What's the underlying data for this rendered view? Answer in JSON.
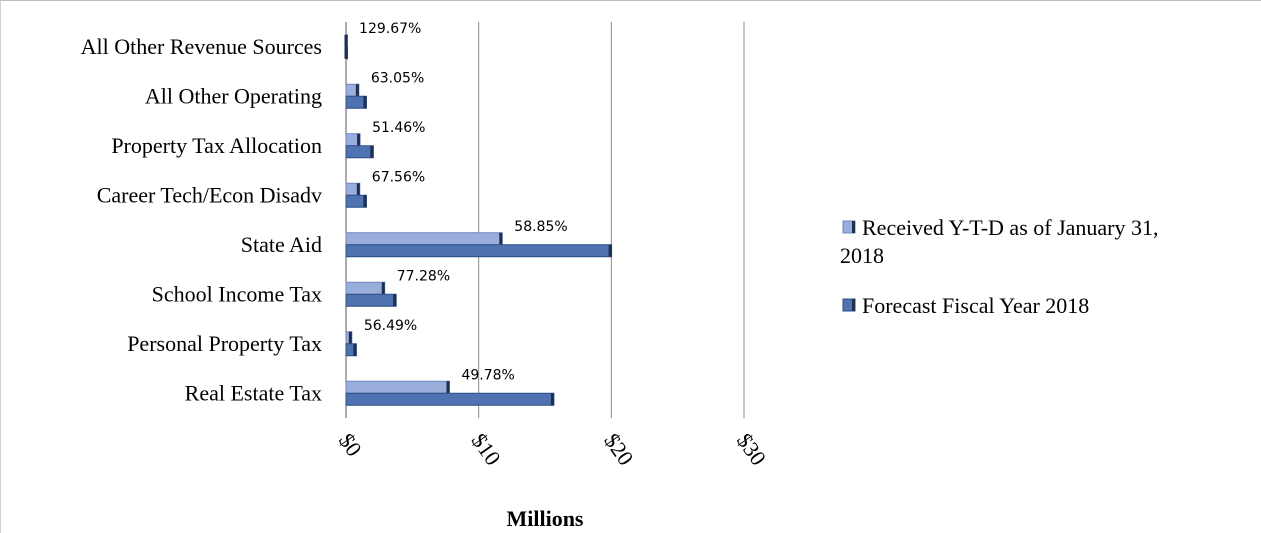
{
  "chart_data": {
    "type": "bar",
    "orientation": "horizontal",
    "categories": [
      "Real Estate Tax",
      "Personal Property Tax",
      "School Income Tax",
      "State Aid",
      "Career Tech/Econ Disadv",
      "Property Tax Allocation",
      "All Other Operating",
      "All Other Revenue Sources"
    ],
    "series": [
      {
        "name": "Received Y-T-D as of January 31, 2018",
        "color": "#9aaedb",
        "values": [
          7.8,
          0.44,
          2.92,
          11.78,
          1.04,
          1.06,
          0.97,
          0.08
        ]
      },
      {
        "name": "Forecast  Fiscal Year 2018",
        "color": "#4f72b0",
        "values": [
          15.67,
          0.78,
          3.78,
          20.02,
          1.54,
          2.06,
          1.54,
          0.06
        ]
      }
    ],
    "data_labels": [
      "49.78%",
      "56.49%",
      "77.28%",
      "58.85%",
      "67.56%",
      "51.46%",
      "63.05%",
      "129.67%"
    ],
    "xlabel": "Millions",
    "xlim": [
      0,
      30
    ],
    "xticks": [
      0,
      10,
      20,
      30
    ],
    "xtick_labels": [
      "$0",
      "$10",
      "$20",
      "$30"
    ],
    "grid": true,
    "legend_position": "right"
  }
}
